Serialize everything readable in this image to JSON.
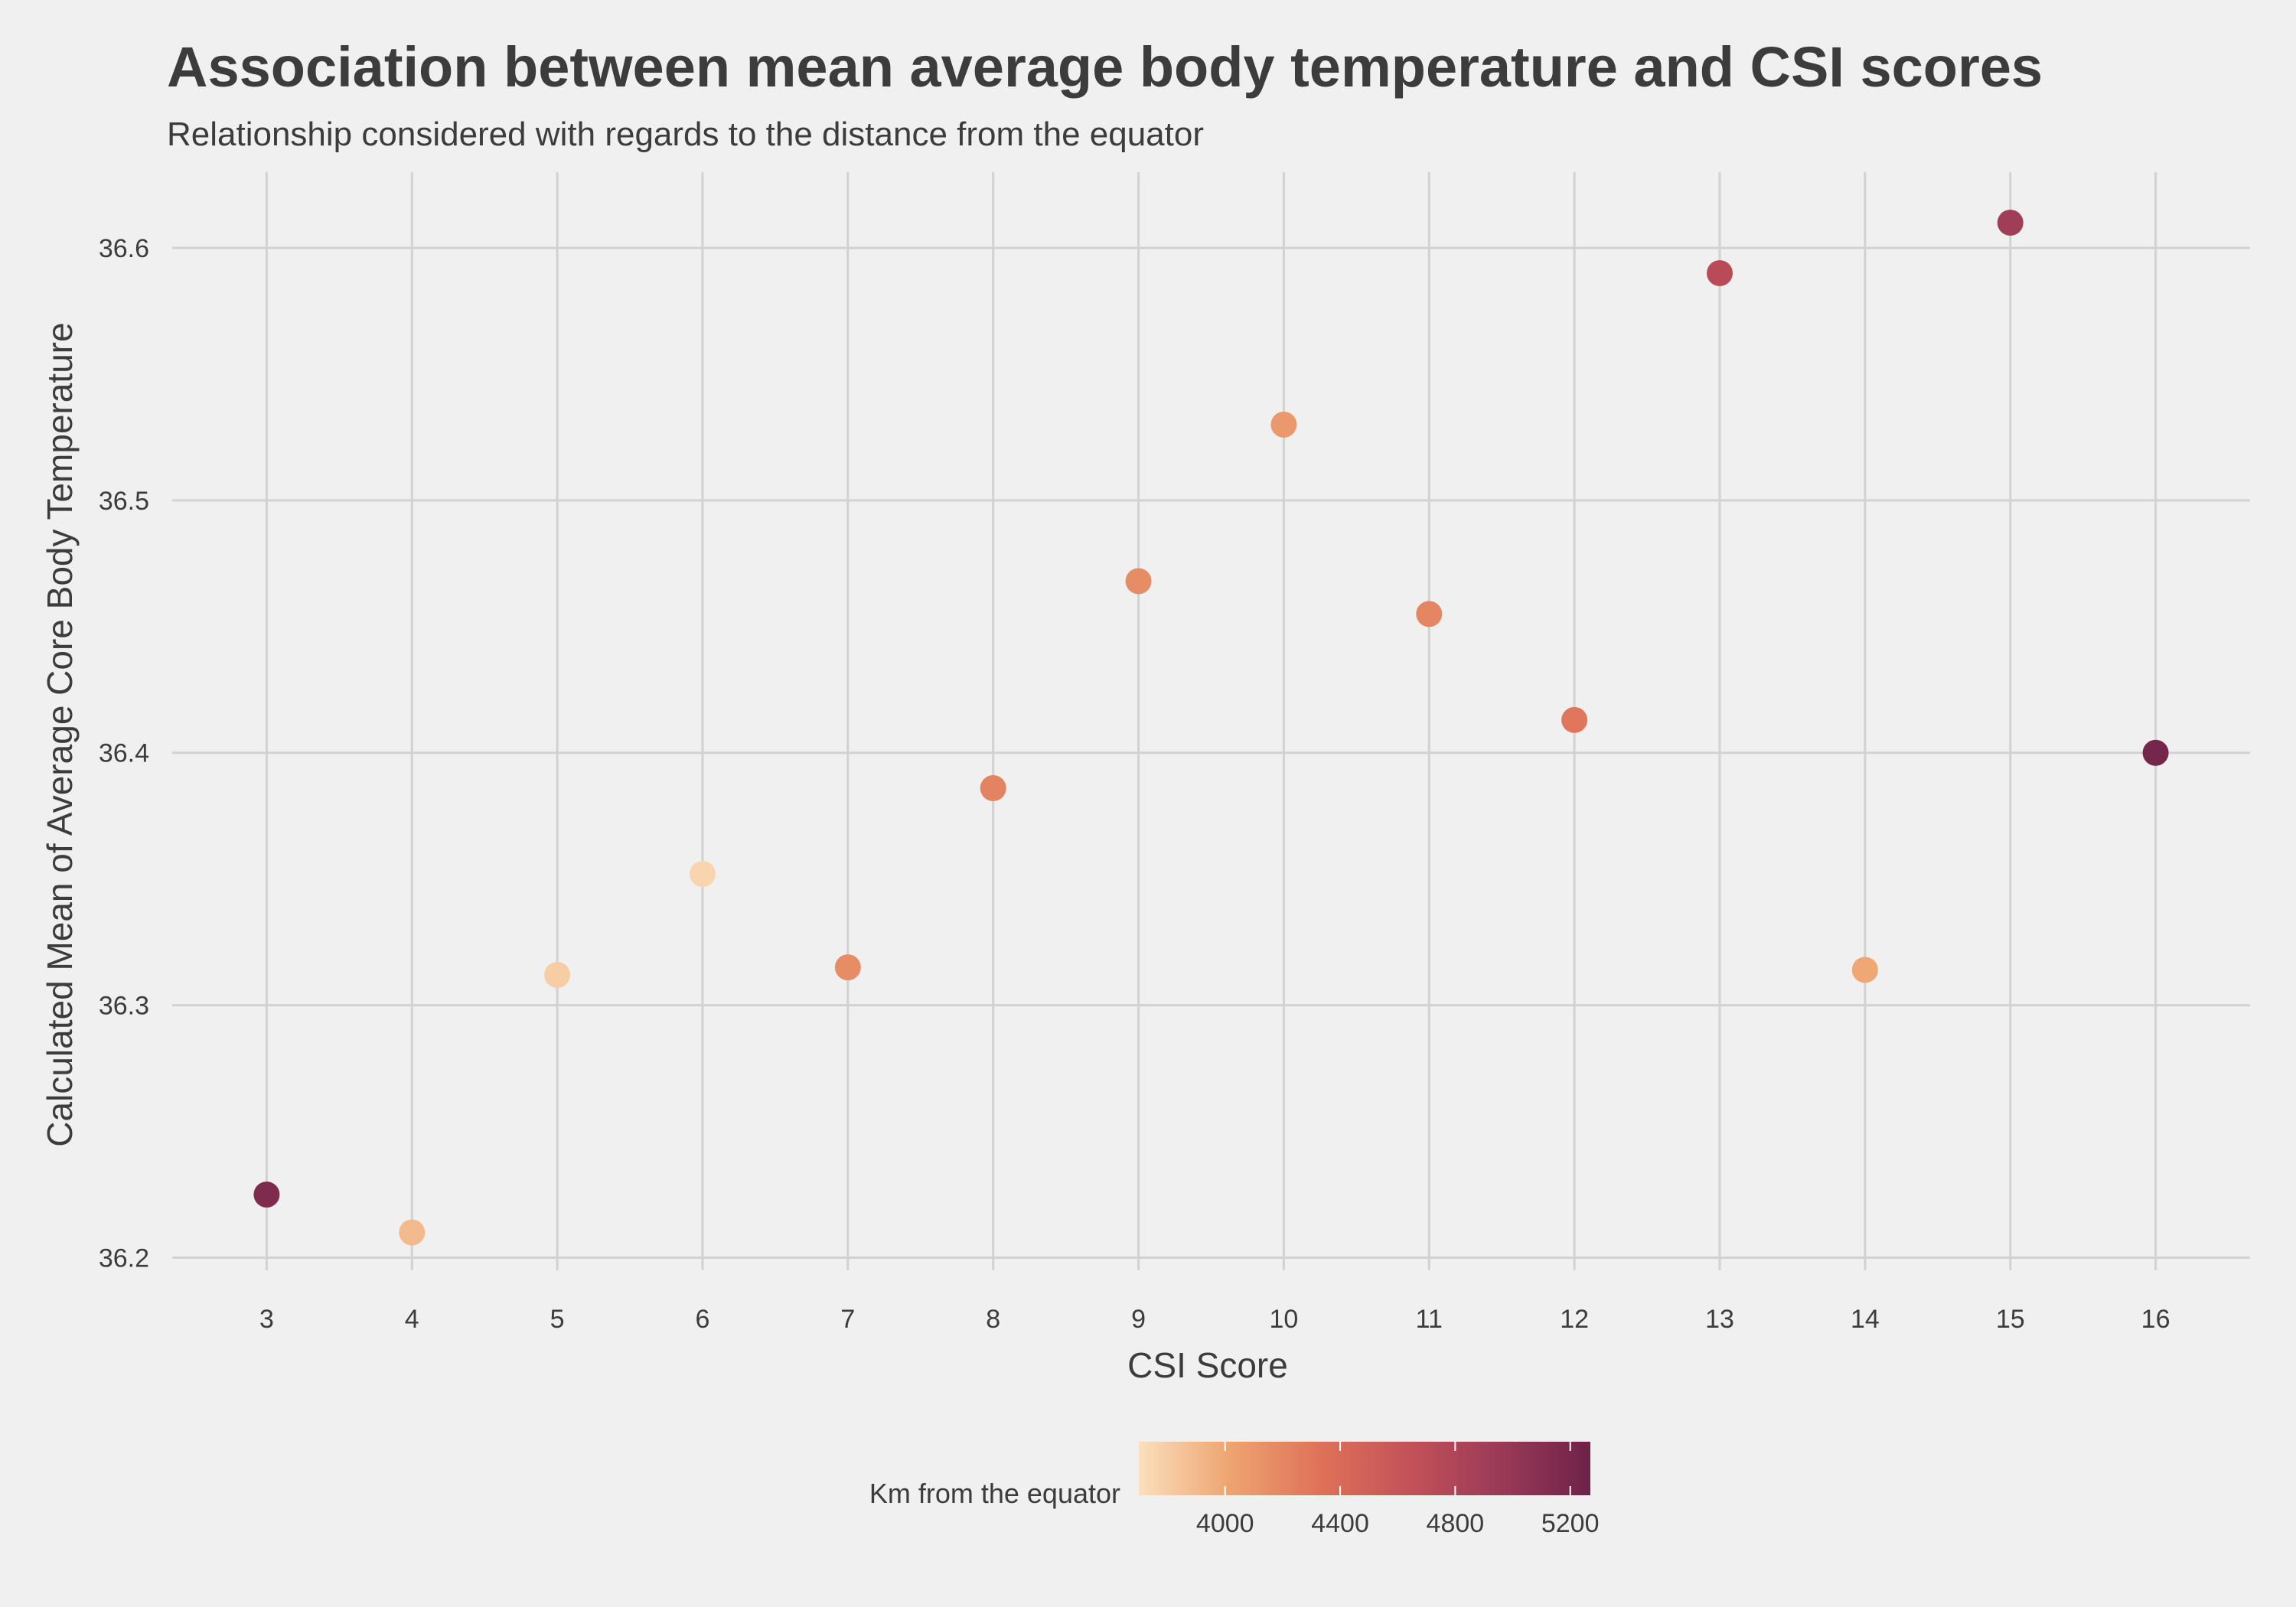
{
  "chart_data": {
    "type": "scatter",
    "title": "Association between mean average body temperature and CSI scores",
    "subtitle": "Relationship considered with regards to the distance from the equator",
    "xlabel": "CSI Score",
    "ylabel": "Calculated Mean of Average Core Body Temperature",
    "xlim": [
      2.35,
      16.65
    ],
    "ylim": [
      36.195,
      36.63
    ],
    "x_ticks": [
      3,
      4,
      5,
      6,
      7,
      8,
      9,
      10,
      11,
      12,
      13,
      14,
      15,
      16
    ],
    "y_ticks": [
      36.2,
      36.3,
      36.4,
      36.5,
      36.6
    ],
    "grid": true,
    "points": [
      {
        "x": 3,
        "y": 36.225,
        "km": 5150
      },
      {
        "x": 4,
        "y": 36.21,
        "km": 3900
      },
      {
        "x": 5,
        "y": 36.312,
        "km": 3800
      },
      {
        "x": 6,
        "y": 36.352,
        "km": 3760
      },
      {
        "x": 7,
        "y": 36.315,
        "km": 4160
      },
      {
        "x": 8,
        "y": 36.386,
        "km": 4220
      },
      {
        "x": 9,
        "y": 36.468,
        "km": 4160
      },
      {
        "x": 10,
        "y": 36.53,
        "km": 4080
      },
      {
        "x": 11,
        "y": 36.455,
        "km": 4200
      },
      {
        "x": 12,
        "y": 36.413,
        "km": 4300
      },
      {
        "x": 13,
        "y": 36.59,
        "km": 4720
      },
      {
        "x": 14,
        "y": 36.314,
        "km": 4000
      },
      {
        "x": 15,
        "y": 36.61,
        "km": 4900
      },
      {
        "x": 16,
        "y": 36.4,
        "km": 5220
      }
    ],
    "legend": {
      "title": "Km from the equator",
      "placement": "bottom",
      "range": [
        3700,
        5270
      ],
      "ticks": [
        4000,
        4400,
        4800,
        5200
      ],
      "colors": [
        "#fae0bd",
        "#eea471",
        "#df7259",
        "#c35159",
        "#9a3a57",
        "#6e2249"
      ]
    }
  }
}
